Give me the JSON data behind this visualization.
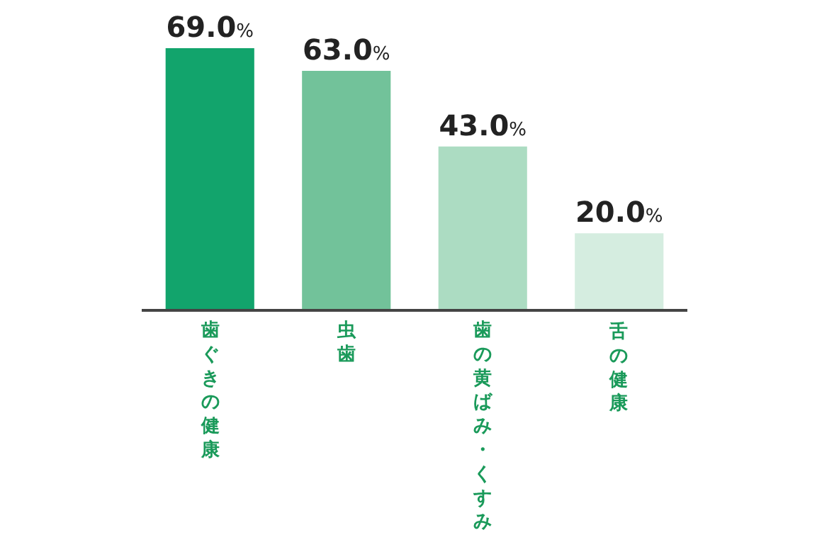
{
  "chart_data": {
    "type": "bar",
    "categories": [
      "歯ぐきの健康",
      "虫歯",
      "歯の黄ばみ・くすみ",
      "舌の健康"
    ],
    "values": [
      69.0,
      63.0,
      43.0,
      20.0
    ],
    "colors": [
      "#12a46c",
      "#72c29a",
      "#acdcc2",
      "#d5ede0"
    ],
    "value_labels": [
      "69.0%",
      "63.0%",
      "43.0%",
      "20.0%"
    ]
  }
}
